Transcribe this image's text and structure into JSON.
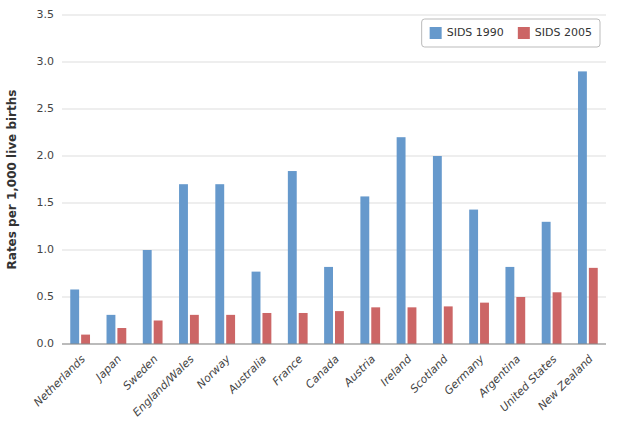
{
  "chart_data": {
    "type": "bar",
    "categories": [
      "Netherlands",
      "Japan",
      "Sweden",
      "England/Wales",
      "Norway",
      "Australia",
      "France",
      "Canada",
      "Austria",
      "Ireland",
      "Scotland",
      "Germany",
      "Argentina",
      "United States",
      "New Zealand"
    ],
    "series": [
      {
        "name": "SIDS 1990",
        "color": "#6699CC",
        "values": [
          0.58,
          0.31,
          1.0,
          1.7,
          1.7,
          0.77,
          1.84,
          0.82,
          1.57,
          2.2,
          2.0,
          1.43,
          0.82,
          1.3,
          2.9
        ]
      },
      {
        "name": "SIDS 2005",
        "color": "#CC6666",
        "values": [
          0.1,
          0.17,
          0.25,
          0.31,
          0.31,
          0.33,
          0.33,
          0.35,
          0.39,
          0.39,
          0.4,
          0.44,
          0.5,
          0.55,
          0.81
        ]
      }
    ],
    "ylabel": "Rates per 1,000 live births",
    "ylim": [
      0,
      3.5
    ],
    "yticks": [
      {
        "value": 0,
        "label": "0.0"
      },
      0.5,
      {
        "value": 1,
        "label": "1.0"
      },
      1.5,
      {
        "value": 2,
        "label": "2.0"
      },
      2.5,
      {
        "value": 3,
        "label": "3.0"
      },
      3.5
    ],
    "grid": true,
    "legend": "upper right"
  }
}
